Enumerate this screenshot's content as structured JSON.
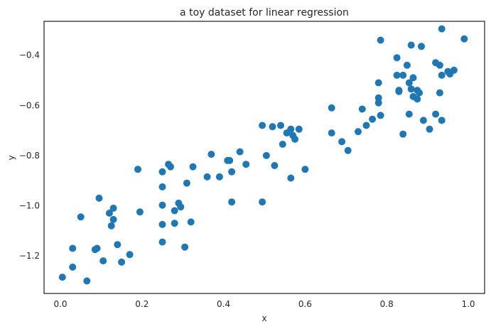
{
  "chart_data": {
    "type": "scatter",
    "title": "a toy dataset for linear regression",
    "xlabel": "x",
    "ylabel": "y",
    "xlim": [
      -0.04,
      1.04
    ],
    "ylim": [
      -1.35,
      -0.265
    ],
    "xticks": [
      0.0,
      0.2,
      0.4,
      0.6,
      0.8,
      1.0
    ],
    "xtick_labels": [
      "0.0",
      "0.2",
      "0.4",
      "0.6",
      "0.8",
      "1.0"
    ],
    "yticks": [
      -1.2,
      -1.0,
      -0.8,
      -0.6,
      -0.4
    ],
    "ytick_labels": [
      "−1.2",
      "−1.0",
      "−0.8",
      "−0.6",
      "−0.4"
    ],
    "grid": false,
    "color": "#1f77b4",
    "points": [
      [
        0.005,
        -1.285
      ],
      [
        0.03,
        -1.17
      ],
      [
        0.03,
        -1.245
      ],
      [
        0.05,
        -1.045
      ],
      [
        0.065,
        -1.3
      ],
      [
        0.085,
        -1.175
      ],
      [
        0.09,
        -1.17
      ],
      [
        0.095,
        -0.97
      ],
      [
        0.105,
        -1.22
      ],
      [
        0.12,
        -1.03
      ],
      [
        0.125,
        -1.08
      ],
      [
        0.13,
        -1.055
      ],
      [
        0.13,
        -1.01
      ],
      [
        0.14,
        -1.155
      ],
      [
        0.15,
        -1.225
      ],
      [
        0.17,
        -1.195
      ],
      [
        0.19,
        -0.855
      ],
      [
        0.195,
        -1.025
      ],
      [
        0.25,
        -0.865
      ],
      [
        0.25,
        -1.145
      ],
      [
        0.25,
        -1.075
      ],
      [
        0.25,
        -0.925
      ],
      [
        0.25,
        -0.998
      ],
      [
        0.265,
        -0.835
      ],
      [
        0.27,
        -0.845
      ],
      [
        0.28,
        -1.02
      ],
      [
        0.28,
        -1.07
      ],
      [
        0.29,
        -0.99
      ],
      [
        0.295,
        -1.005
      ],
      [
        0.305,
        -1.165
      ],
      [
        0.31,
        -0.91
      ],
      [
        0.32,
        -1.065
      ],
      [
        0.325,
        -0.845
      ],
      [
        0.36,
        -0.885
      ],
      [
        0.37,
        -0.795
      ],
      [
        0.39,
        -0.885
      ],
      [
        0.41,
        -0.82
      ],
      [
        0.415,
        -0.82
      ],
      [
        0.42,
        -0.865
      ],
      [
        0.42,
        -0.985
      ],
      [
        0.44,
        -0.785
      ],
      [
        0.455,
        -0.835
      ],
      [
        0.495,
        -0.68
      ],
      [
        0.495,
        -0.985
      ],
      [
        0.505,
        -0.8
      ],
      [
        0.52,
        -0.685
      ],
      [
        0.525,
        -0.84
      ],
      [
        0.54,
        -0.68
      ],
      [
        0.545,
        -0.755
      ],
      [
        0.555,
        -0.71
      ],
      [
        0.565,
        -0.695
      ],
      [
        0.565,
        -0.89
      ],
      [
        0.57,
        -0.72
      ],
      [
        0.575,
        -0.735
      ],
      [
        0.585,
        -0.695
      ],
      [
        0.6,
        -0.855
      ],
      [
        0.665,
        -0.71
      ],
      [
        0.665,
        -0.61
      ],
      [
        0.69,
        -0.745
      ],
      [
        0.705,
        -0.78
      ],
      [
        0.73,
        -0.705
      ],
      [
        0.74,
        -0.615
      ],
      [
        0.75,
        -0.68
      ],
      [
        0.765,
        -0.655
      ],
      [
        0.78,
        -0.51
      ],
      [
        0.78,
        -0.57
      ],
      [
        0.78,
        -0.59
      ],
      [
        0.785,
        -0.34
      ],
      [
        0.785,
        -0.64
      ],
      [
        0.825,
        -0.48
      ],
      [
        0.825,
        -0.41
      ],
      [
        0.83,
        -0.545
      ],
      [
        0.83,
        -0.54
      ],
      [
        0.84,
        -0.715
      ],
      [
        0.84,
        -0.48
      ],
      [
        0.85,
        -0.44
      ],
      [
        0.855,
        -0.51
      ],
      [
        0.855,
        -0.635
      ],
      [
        0.86,
        -0.535
      ],
      [
        0.86,
        -0.36
      ],
      [
        0.865,
        -0.49
      ],
      [
        0.865,
        -0.565
      ],
      [
        0.875,
        -0.54
      ],
      [
        0.875,
        -0.575
      ],
      [
        0.88,
        -0.55
      ],
      [
        0.885,
        -0.365
      ],
      [
        0.89,
        -0.66
      ],
      [
        0.905,
        -0.695
      ],
      [
        0.92,
        -0.43
      ],
      [
        0.92,
        -0.635
      ],
      [
        0.93,
        -0.44
      ],
      [
        0.93,
        -0.55
      ],
      [
        0.935,
        -0.48
      ],
      [
        0.935,
        -0.66
      ],
      [
        0.935,
        -0.295
      ],
      [
        0.95,
        -0.465
      ],
      [
        0.955,
        -0.475
      ],
      [
        0.965,
        -0.46
      ],
      [
        0.99,
        -0.335
      ]
    ]
  }
}
